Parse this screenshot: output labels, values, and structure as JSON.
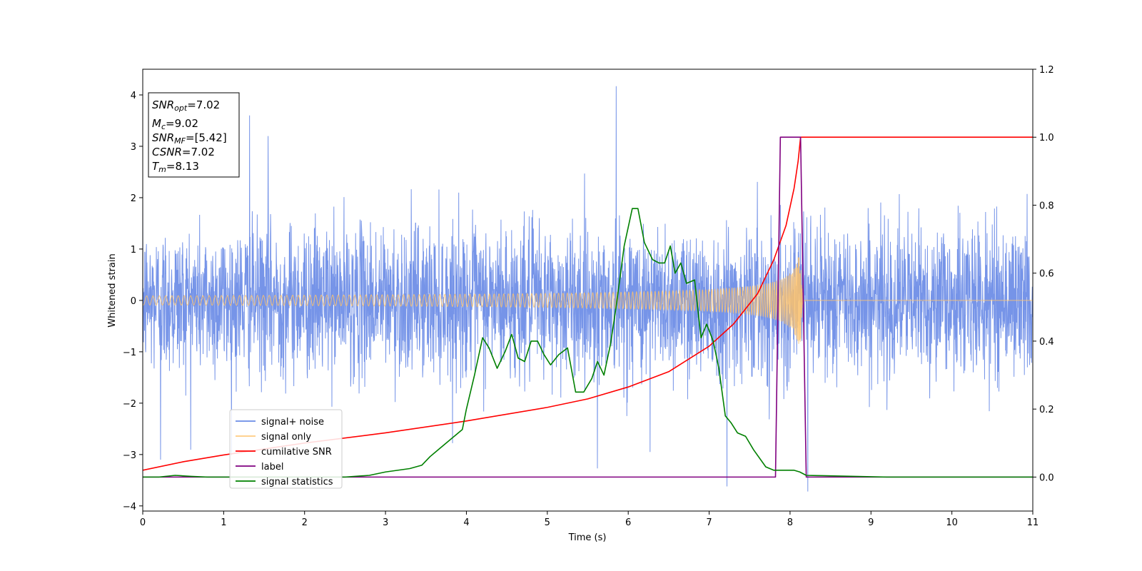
{
  "chart_data": {
    "type": "line",
    "xlabel": "Time (s)",
    "ylabel": "Whitened strain",
    "xlim": [
      0,
      11
    ],
    "ylim": [
      -4.1,
      4.5
    ],
    "y2lim": [
      -0.1,
      1.2
    ],
    "xticks": [
      0,
      1,
      2,
      3,
      4,
      5,
      6,
      7,
      8,
      9,
      10,
      11
    ],
    "yticks": [
      -4,
      -3,
      -2,
      -1,
      0,
      1,
      2,
      3,
      4
    ],
    "y2ticks": [
      0.0,
      0.2,
      0.4,
      0.6,
      0.8,
      1.0,
      1.2
    ],
    "legend_position": "lower-left",
    "series": [
      {
        "name": "signal+ noise",
        "color": "#6a8be6",
        "axis": "left",
        "description_type": "noise",
        "std": 0.72,
        "extremes": [
          [
            0.22,
            -3.1
          ],
          [
            1.32,
            3.6
          ],
          [
            5.85,
            4.17
          ],
          [
            7.22,
            -3.62
          ],
          [
            8.22,
            -3.72
          ],
          [
            6.27,
            -2.95
          ],
          [
            5.62,
            -3.27
          ],
          [
            1.55,
            3.2
          ]
        ]
      },
      {
        "name": "signal only",
        "color": "#ffc36b",
        "axis": "left",
        "description_type": "chirp",
        "t_merge": 8.13,
        "peak_amplitude": 0.85
      },
      {
        "name": "cumilative SNR",
        "color": "#ff0000",
        "axis": "right",
        "x": [
          0,
          0.5,
          1,
          2,
          3,
          4,
          5,
          5.5,
          6,
          6.5,
          7,
          7.3,
          7.6,
          7.8,
          7.95,
          8.05,
          8.1,
          8.13,
          11
        ],
        "y": [
          0.02,
          0.045,
          0.065,
          0.1,
          0.13,
          0.165,
          0.205,
          0.23,
          0.265,
          0.31,
          0.385,
          0.45,
          0.54,
          0.64,
          0.74,
          0.85,
          0.93,
          1.0,
          1.0
        ]
      },
      {
        "name": "label",
        "color": "#800080",
        "axis": "right",
        "x": [
          0,
          7.82,
          7.88,
          8.13,
          8.2,
          11
        ],
        "y": [
          0,
          0,
          1,
          1,
          0,
          0
        ]
      },
      {
        "name": "signal statistics",
        "color": "#008000",
        "axis": "right",
        "x": [
          0,
          0.2,
          0.4,
          0.6,
          0.8,
          1.0,
          1.5,
          2.0,
          2.5,
          2.8,
          3.0,
          3.15,
          3.3,
          3.45,
          3.55,
          3.65,
          3.75,
          3.85,
          3.95,
          4.0,
          4.1,
          4.2,
          4.28,
          4.38,
          4.48,
          4.56,
          4.64,
          4.72,
          4.8,
          4.88,
          4.96,
          5.04,
          5.14,
          5.25,
          5.35,
          5.45,
          5.55,
          5.62,
          5.7,
          5.78,
          5.85,
          5.95,
          6.05,
          6.12,
          6.2,
          6.3,
          6.38,
          6.45,
          6.52,
          6.58,
          6.65,
          6.72,
          6.82,
          6.9,
          6.97,
          7.05,
          7.12,
          7.2,
          7.27,
          7.35,
          7.45,
          7.55,
          7.7,
          7.8,
          7.95,
          8.05,
          8.12,
          8.2,
          8.4,
          8.8,
          9.2,
          9.6,
          10,
          10.5,
          11
        ],
        "y": [
          0.0,
          0.0,
          0.005,
          0.002,
          0.0,
          0.0,
          0.0,
          0.0,
          0.0,
          0.005,
          0.015,
          0.02,
          0.025,
          0.035,
          0.06,
          0.08,
          0.1,
          0.12,
          0.14,
          0.2,
          0.3,
          0.41,
          0.38,
          0.32,
          0.37,
          0.42,
          0.35,
          0.34,
          0.4,
          0.4,
          0.36,
          0.33,
          0.36,
          0.38,
          0.25,
          0.25,
          0.29,
          0.34,
          0.3,
          0.39,
          0.5,
          0.68,
          0.79,
          0.79,
          0.69,
          0.64,
          0.63,
          0.63,
          0.68,
          0.6,
          0.63,
          0.57,
          0.58,
          0.41,
          0.45,
          0.4,
          0.32,
          0.18,
          0.16,
          0.13,
          0.12,
          0.08,
          0.03,
          0.02,
          0.02,
          0.02,
          0.015,
          0.005,
          0.004,
          0.002,
          0.0,
          0.0,
          0.0,
          0.0,
          0.0
        ]
      }
    ]
  },
  "info_box": {
    "line1_main": "SNR",
    "line1_sub": "opt",
    "line1_val": "=7.02",
    "line2_main": "M",
    "line2_sub": "c",
    "line2_val": "=9.02",
    "line3_main": "SNR",
    "line3_sub": "MF",
    "line3_val": "=[5.42]",
    "line4_main": "CSNR",
    "line4_val": "=7.02",
    "line5_main": "T",
    "line5_sub": "m",
    "line5_val": "=8.13"
  }
}
